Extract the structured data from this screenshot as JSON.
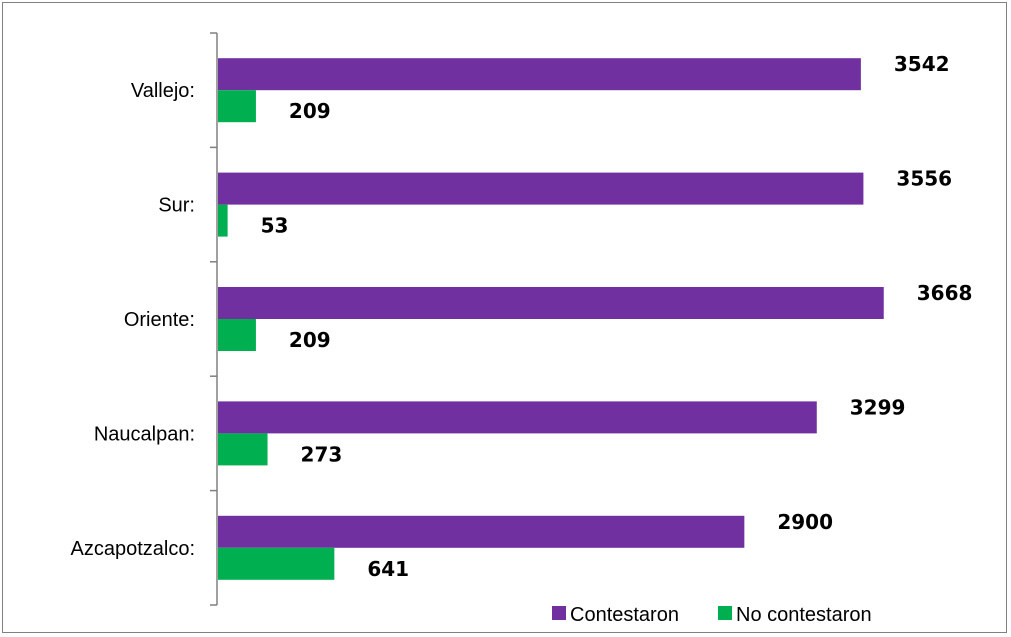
{
  "chart_data": {
    "type": "bar",
    "orientation": "horizontal",
    "categories": [
      "Vallejo:",
      "Sur:",
      "Oriente:",
      "Naucalpan:",
      "Azcapotzalco:"
    ],
    "series": [
      {
        "name": "Contestaron",
        "color": "#7030A0",
        "values": [
          3542,
          3556,
          3668,
          3299,
          2900
        ]
      },
      {
        "name": "No contestaron",
        "color": "#00B050",
        "values": [
          209,
          53,
          209,
          273,
          641
        ]
      }
    ],
    "xlim": [
      0,
      4000
    ],
    "grid": false,
    "legend": "bottom-right",
    "data_labels": true
  }
}
